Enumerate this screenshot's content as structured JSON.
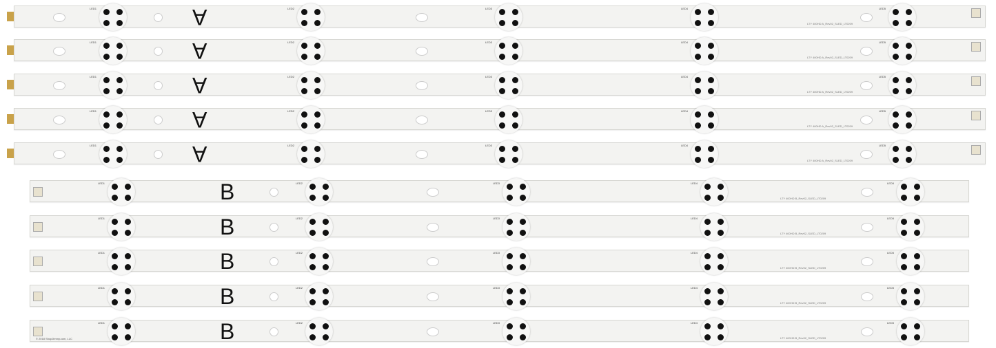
{
  "strips_a": {
    "letter": "A",
    "count": 5,
    "led_labels": [
      "LED1",
      "LED2",
      "LED3",
      "LED4",
      "LED5"
    ],
    "part_number": "LTY 400HD A_Rev02_SLED_LT0209"
  },
  "strips_b": {
    "letter": "B",
    "count": 5,
    "led_labels": [
      "LED1",
      "LED2",
      "LED3",
      "LED4",
      "LED5"
    ],
    "part_number": "LTY 400HD B_Rev02_SLED_LT0209"
  },
  "copyright": "© 2018 ShopJimmy.com, LLC",
  "colors": {
    "strip": "#f3f3f1",
    "dot": "#111111",
    "tab": "#c9a24a"
  }
}
